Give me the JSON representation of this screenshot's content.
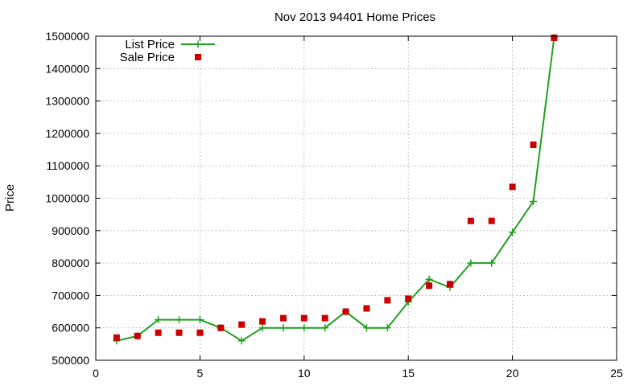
{
  "chart_data": {
    "type": "line",
    "title": "Nov 2013 94401 Home Prices",
    "xlabel": "",
    "ylabel": "Price",
    "xlim": [
      0,
      25
    ],
    "ylim": [
      500000,
      1500000
    ],
    "xticks": [
      0,
      5,
      10,
      15,
      20,
      25
    ],
    "xtick_labels": [
      "0",
      "5",
      "10",
      "15",
      "20",
      "25"
    ],
    "yticks": [
      500000,
      600000,
      700000,
      800000,
      900000,
      1000000,
      1100000,
      1200000,
      1300000,
      1400000,
      1500000
    ],
    "ytick_labels": [
      "500000",
      "600000",
      "700000",
      "800000",
      "900000",
      "1000000",
      "1100000",
      "1200000",
      "1300000",
      "1400000",
      "1500000"
    ],
    "grid": true,
    "legend_position": "top-left",
    "series": [
      {
        "name": "List Price",
        "style": "line-with-plus-markers",
        "color": "#1fa01f",
        "x": [
          1,
          2,
          3,
          4,
          5,
          6,
          7,
          8,
          9,
          10,
          11,
          12,
          13,
          14,
          15,
          16,
          17,
          18,
          19,
          20,
          21,
          22
        ],
        "y": [
          560000,
          575000,
          625000,
          625000,
          625000,
          600000,
          560000,
          600000,
          600000,
          600000,
          600000,
          650000,
          600000,
          600000,
          680000,
          750000,
          725000,
          800000,
          800000,
          895000,
          990000,
          1495000
        ]
      },
      {
        "name": "Sale Price",
        "style": "square-markers",
        "color": "#cc0000",
        "x": [
          1,
          2,
          3,
          4,
          5,
          6,
          7,
          8,
          9,
          10,
          11,
          12,
          13,
          14,
          15,
          16,
          17,
          18,
          19,
          20,
          21,
          22
        ],
        "y": [
          570000,
          575000,
          585000,
          585000,
          585000,
          600000,
          610000,
          620000,
          630000,
          630000,
          630000,
          650000,
          660000,
          685000,
          690000,
          730000,
          735000,
          930000,
          930000,
          1035000,
          1165000,
          1495000
        ]
      }
    ]
  }
}
